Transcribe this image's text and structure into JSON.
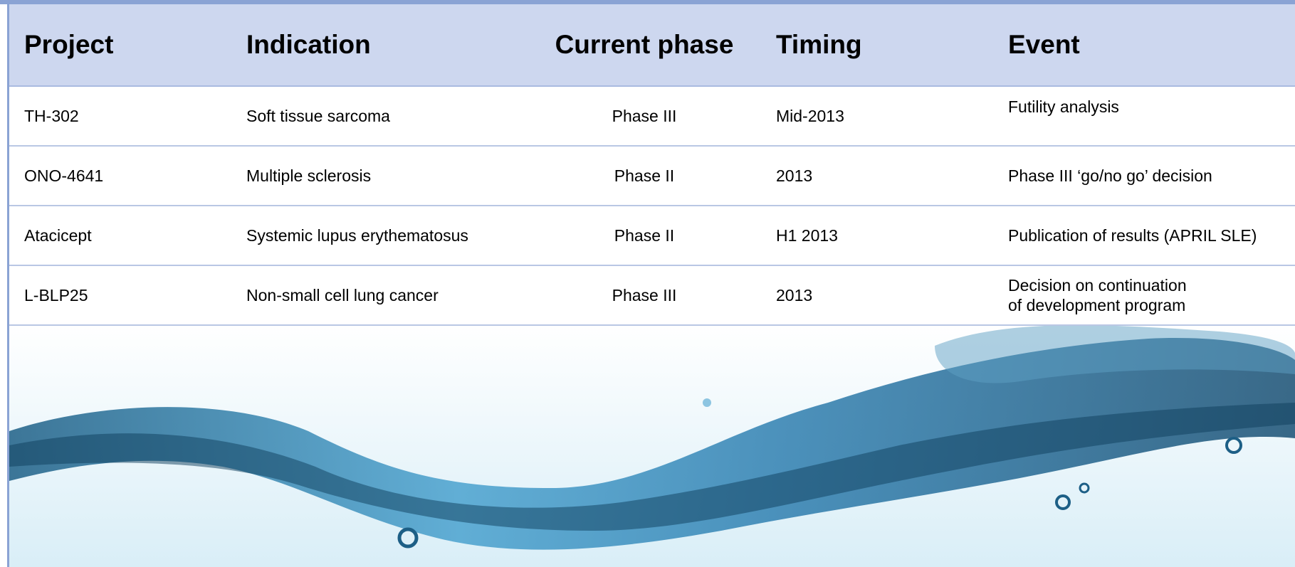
{
  "header": {
    "columns": [
      "Project",
      "Indication",
      "Current phase",
      "Timing",
      "Event"
    ]
  },
  "table": {
    "rows": [
      [
        "TH-302",
        "Soft tissue sarcoma",
        "Phase III",
        "Mid-2013",
        "Futility analysis"
      ],
      [
        "ONO-4641",
        "Multiple sclerosis",
        "Phase II",
        "2013",
        "Phase III ‘go/no go’  decision"
      ],
      [
        "Atacicept",
        "Systemic lupus erythematosus",
        "Phase II",
        "H1 2013",
        "Publication of results (APRIL SLE)"
      ],
      [
        "L-BLP25",
        "Non-small cell lung cancer",
        "Phase III",
        "2013",
        "Decision on continuation\nof development program"
      ]
    ]
  }
}
